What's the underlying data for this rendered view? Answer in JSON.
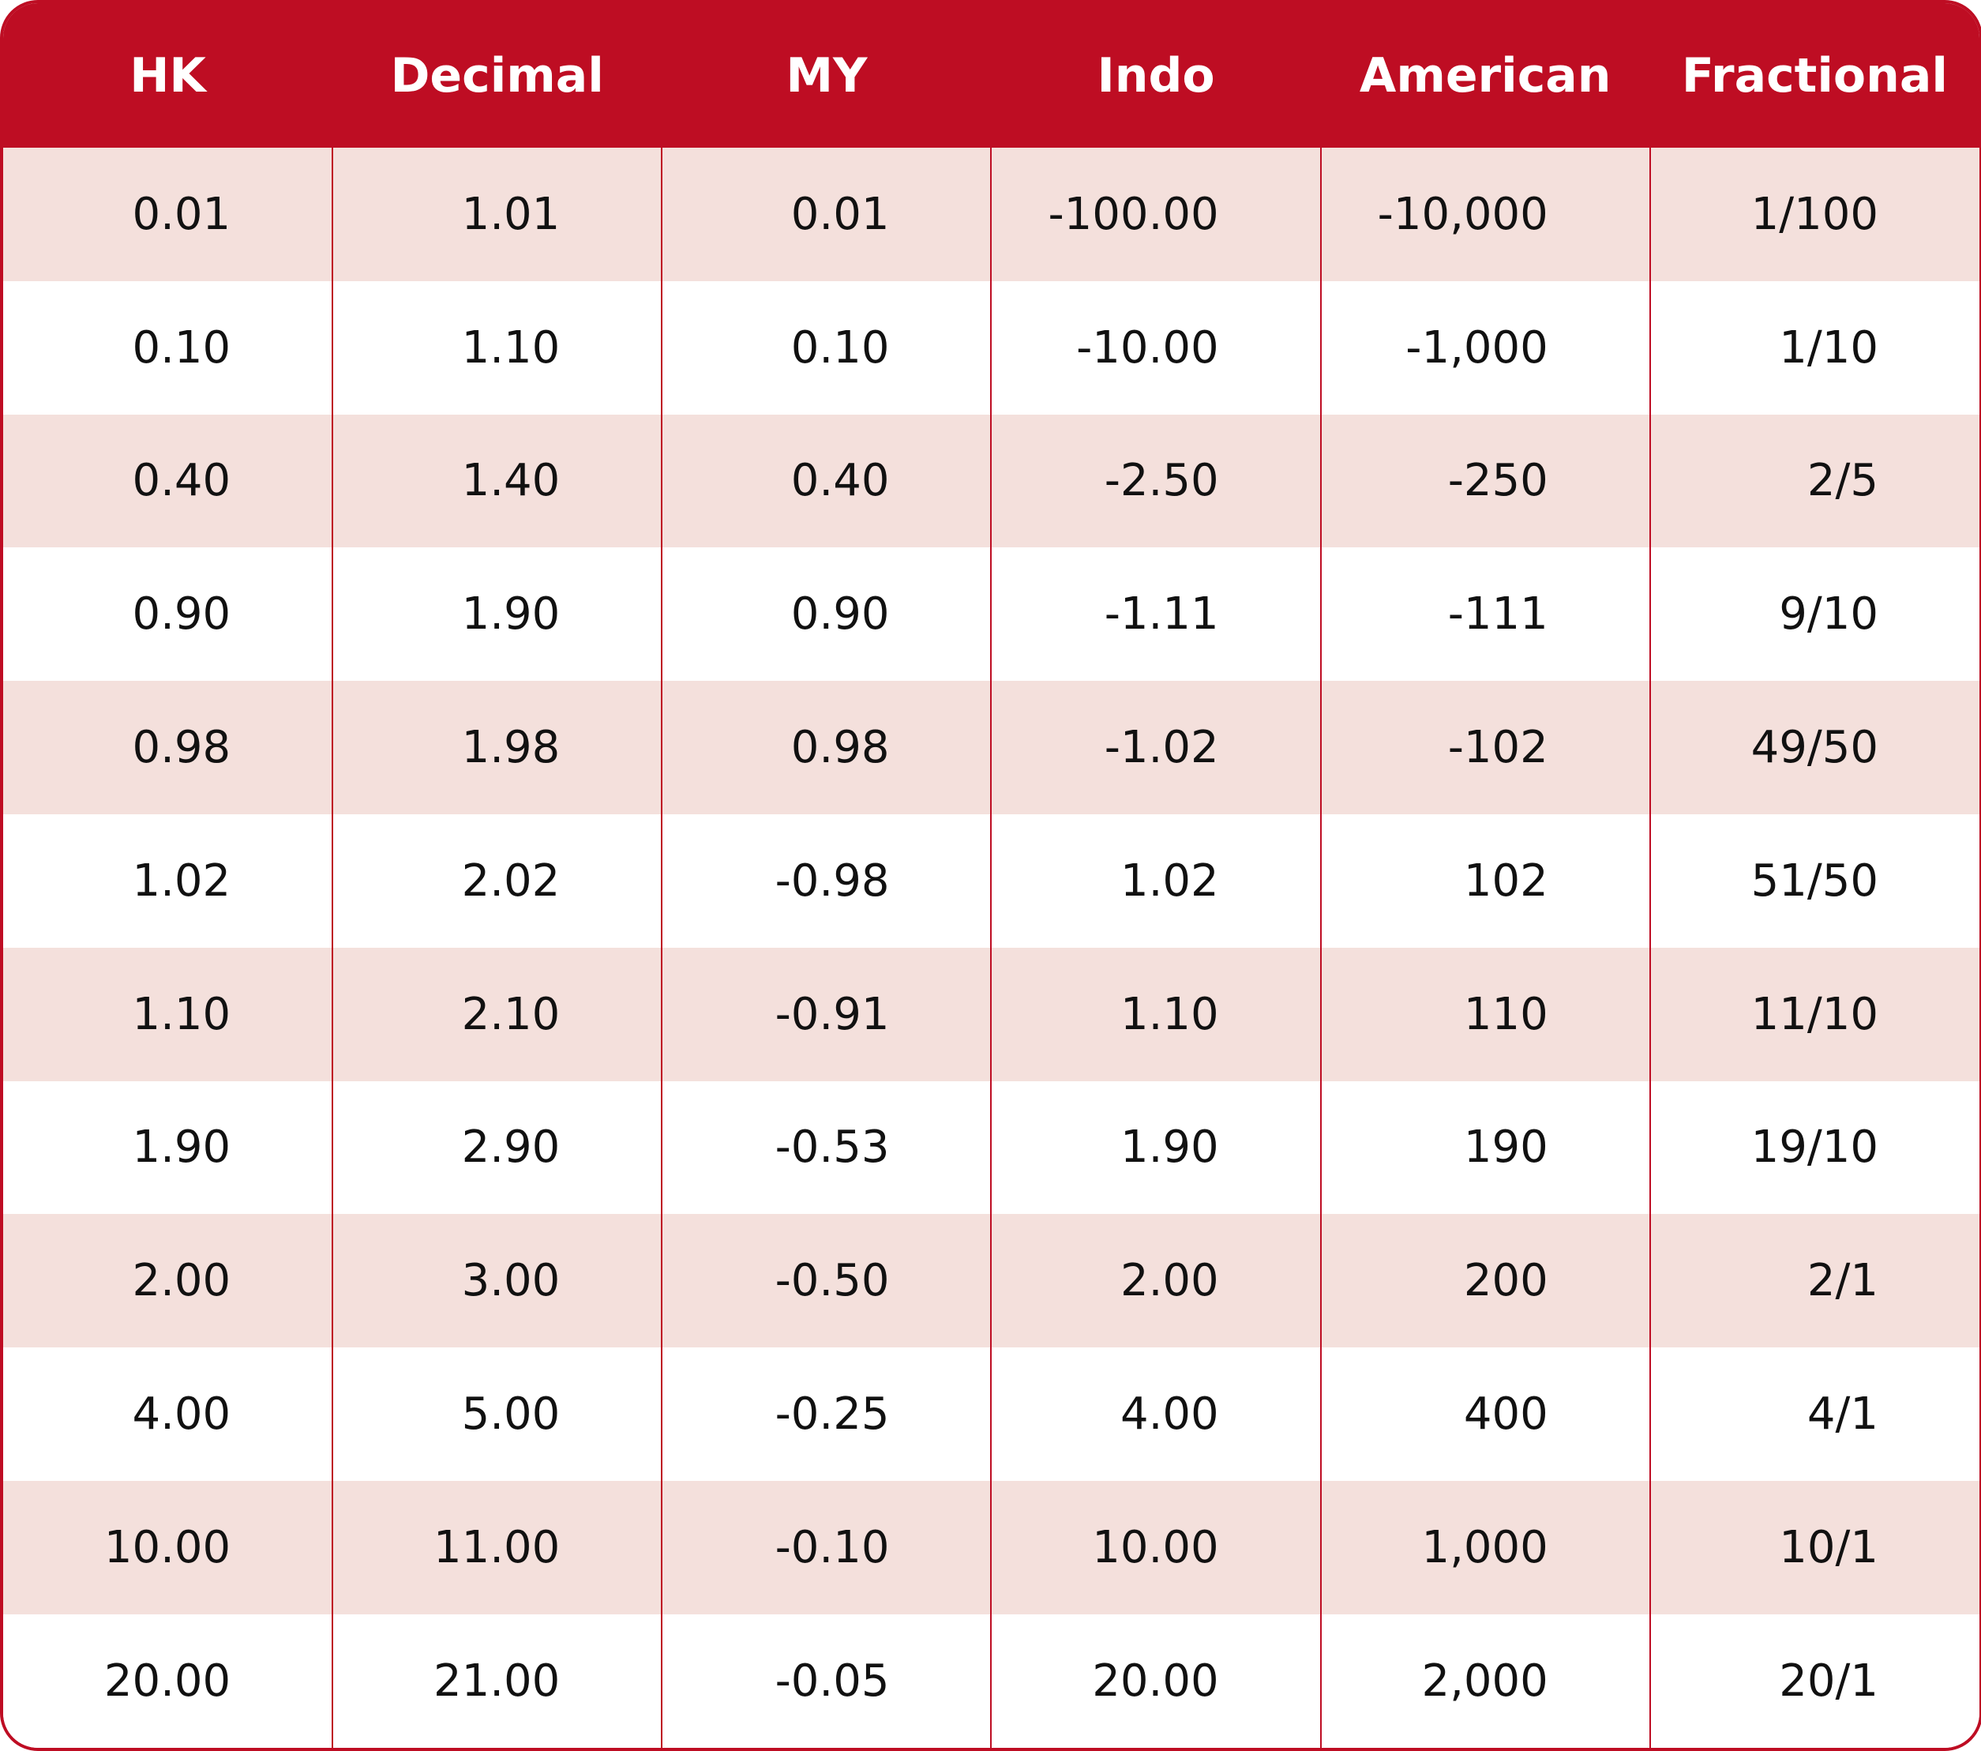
{
  "table": {
    "headers": [
      "HK",
      "Decimal",
      "MY",
      "Indo",
      "American",
      "Fractional"
    ],
    "rows": [
      [
        "0.01",
        "1.01",
        "0.01",
        "-100.00",
        "-10,000",
        "1/100"
      ],
      [
        "0.10",
        "1.10",
        "0.10",
        "-10.00",
        "-1,000",
        "1/10"
      ],
      [
        "0.40",
        "1.40",
        "0.40",
        "-2.50",
        "-250",
        "2/5"
      ],
      [
        "0.90",
        "1.90",
        "0.90",
        "-1.11",
        "-111",
        "9/10"
      ],
      [
        "0.98",
        "1.98",
        "0.98",
        "-1.02",
        "-102",
        "49/50"
      ],
      [
        "1.02",
        "2.02",
        "-0.98",
        "1.02",
        "102",
        "51/50"
      ],
      [
        "1.10",
        "2.10",
        "-0.91",
        "1.10",
        "110",
        "11/10"
      ],
      [
        "1.90",
        "2.90",
        "-0.53",
        "1.90",
        "190",
        "19/10"
      ],
      [
        "2.00",
        "3.00",
        "-0.50",
        "2.00",
        "200",
        "2/1"
      ],
      [
        "4.00",
        "5.00",
        "-0.25",
        "4.00",
        "400",
        "4/1"
      ],
      [
        "10.00",
        "11.00",
        "-0.10",
        "10.00",
        "1,000",
        "10/1"
      ],
      [
        "20.00",
        "21.00",
        "-0.05",
        "20.00",
        "2,000",
        "20/1"
      ]
    ]
  }
}
